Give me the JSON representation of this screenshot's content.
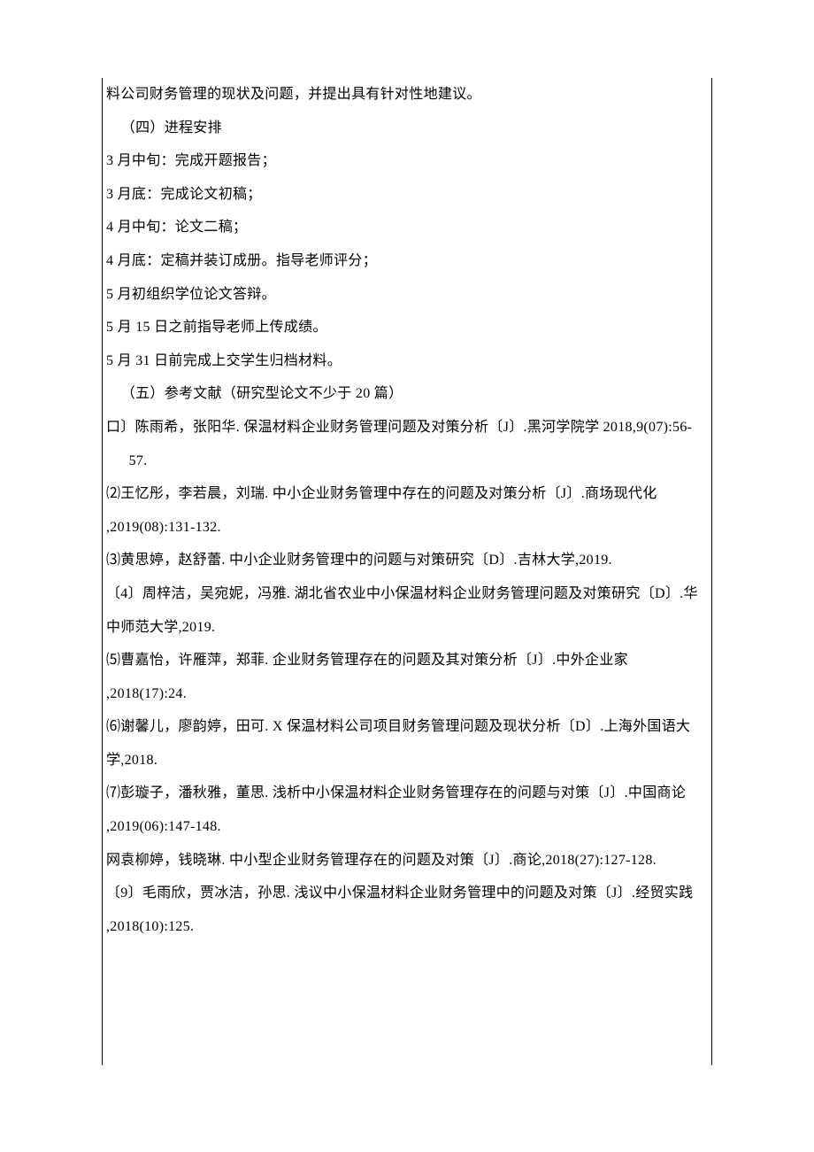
{
  "doc": {
    "l0": "料公司财务管理的现状及问题，并提出具有针对性地建议。",
    "l1": "（四）进程安排",
    "l2a": "3 月中旬：完成开题报告；",
    "l2b": "3 月底：完成论文初稿；",
    "l2c": "4 月中旬：论文二稿；",
    "l2d": "4 月底：定稿并装订成册。指导老师评分；",
    "l2e": "5 月初组织学位论文答辩。",
    "l2f": "5 月 15 日之前指导老师上传成绩。",
    "l2g": "5 月 31 日前完成上交学生归档材料。",
    "l3": "（五）参考文献（研究型论文不少于 20 篇）",
    "r1a": "口〕陈雨希，张阳华. 保温材料企业财务管理问题及对策分析〔J〕.黑河学院学 2018,9(07):56-",
    "r1b": "57.",
    "r2a": "⑵王忆彤，李若晨，刘瑞. 中小企业财务管理中存在的问题及对策分析〔J〕.商场现代化",
    "r2b": ",2019(08):131-132.",
    "r3": "⑶黄思婷，赵舒蕾. 中小企业财务管理中的问题与对策研究〔D〕.吉林大学,2019.",
    "r4a": "〔4〕周梓洁，吴宛妮，冯雅. 湖北省农业中小保温材料企业财务管理问题及对策研究〔D〕.华",
    "r4b": "中师范大学,2019.",
    "r5a": "⑸曹嘉怡，许雁萍，郑菲. 企业财务管理存在的问题及其对策分析〔J〕.中外企业家",
    "r5b": ",2018(17):24.",
    "r6a": "⑹谢馨儿，廖韵婷，田可. X 保温材料公司项目财务管理问题及现状分析〔D〕.上海外国语大",
    "r6b": "学,2018.",
    "r7a": "⑺彭璇子，潘秋雅，董思. 浅析中小保温材料企业财务管理存在的问题与对策〔J〕.中国商论",
    "r7b": ",2019(06):147-148.",
    "r8": "网袁柳婷，钱晓琳. 中小型企业财务管理存在的问题及对策〔J〕.商论,2018(27):127-128.",
    "r9a": "〔9〕毛雨欣，贾冰洁，孙思. 浅议中小保温材料企业财务管理中的问题及对策〔J〕.经贸实践",
    "r9b": ",2018(10):125."
  }
}
